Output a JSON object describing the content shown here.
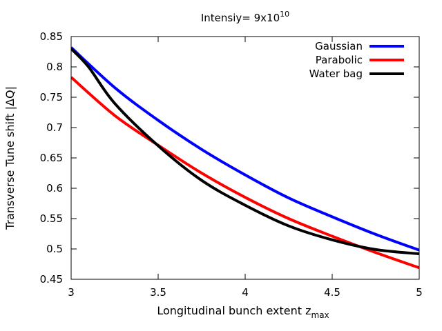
{
  "chart_data": {
    "type": "line",
    "title": {
      "prefix": "Intensiy= 9x10",
      "superscript": "10"
    },
    "xlabel": {
      "main": "Longitudinal bunch extent z",
      "subscript": "max"
    },
    "ylabel": "Transverse Tune shift  |ΔQ|",
    "xlim": [
      3,
      5
    ],
    "ylim": [
      0.45,
      0.85
    ],
    "xticks": [
      3,
      3.5,
      4,
      4.5,
      5
    ],
    "xtick_labels": [
      "3",
      "3.5",
      "4",
      "4.5",
      "5"
    ],
    "yticks": [
      0.45,
      0.5,
      0.55,
      0.6,
      0.65,
      0.7,
      0.75,
      0.8,
      0.85
    ],
    "ytick_labels": [
      "0.45",
      "0.5",
      "0.55",
      "0.6",
      "0.65",
      "0.7",
      "0.75",
      "0.8",
      "0.85"
    ],
    "grid": false,
    "legend_position": "top-right",
    "series": [
      {
        "name": "Gaussian",
        "color": "#0000ff",
        "x": [
          3,
          3.25,
          3.5,
          3.75,
          4,
          4.25,
          4.5,
          4.75,
          5
        ],
        "y": [
          0.832,
          0.766,
          0.712,
          0.664,
          0.622,
          0.584,
          0.553,
          0.524,
          0.498
        ]
      },
      {
        "name": "Parabolic",
        "color": "#ff0000",
        "x": [
          3,
          3.25,
          3.5,
          3.75,
          4,
          4.25,
          4.5,
          4.75,
          5
        ],
        "y": [
          0.783,
          0.72,
          0.671,
          0.625,
          0.585,
          0.55,
          0.521,
          0.494,
          0.469
        ]
      },
      {
        "name": "Water bag",
        "color": "#000000",
        "x": [
          3,
          3.1,
          3.25,
          3.5,
          3.75,
          4,
          4.25,
          4.5,
          4.75,
          5
        ],
        "y": [
          0.83,
          0.8,
          0.74,
          0.67,
          0.613,
          0.572,
          0.538,
          0.515,
          0.499,
          0.492
        ]
      }
    ]
  }
}
